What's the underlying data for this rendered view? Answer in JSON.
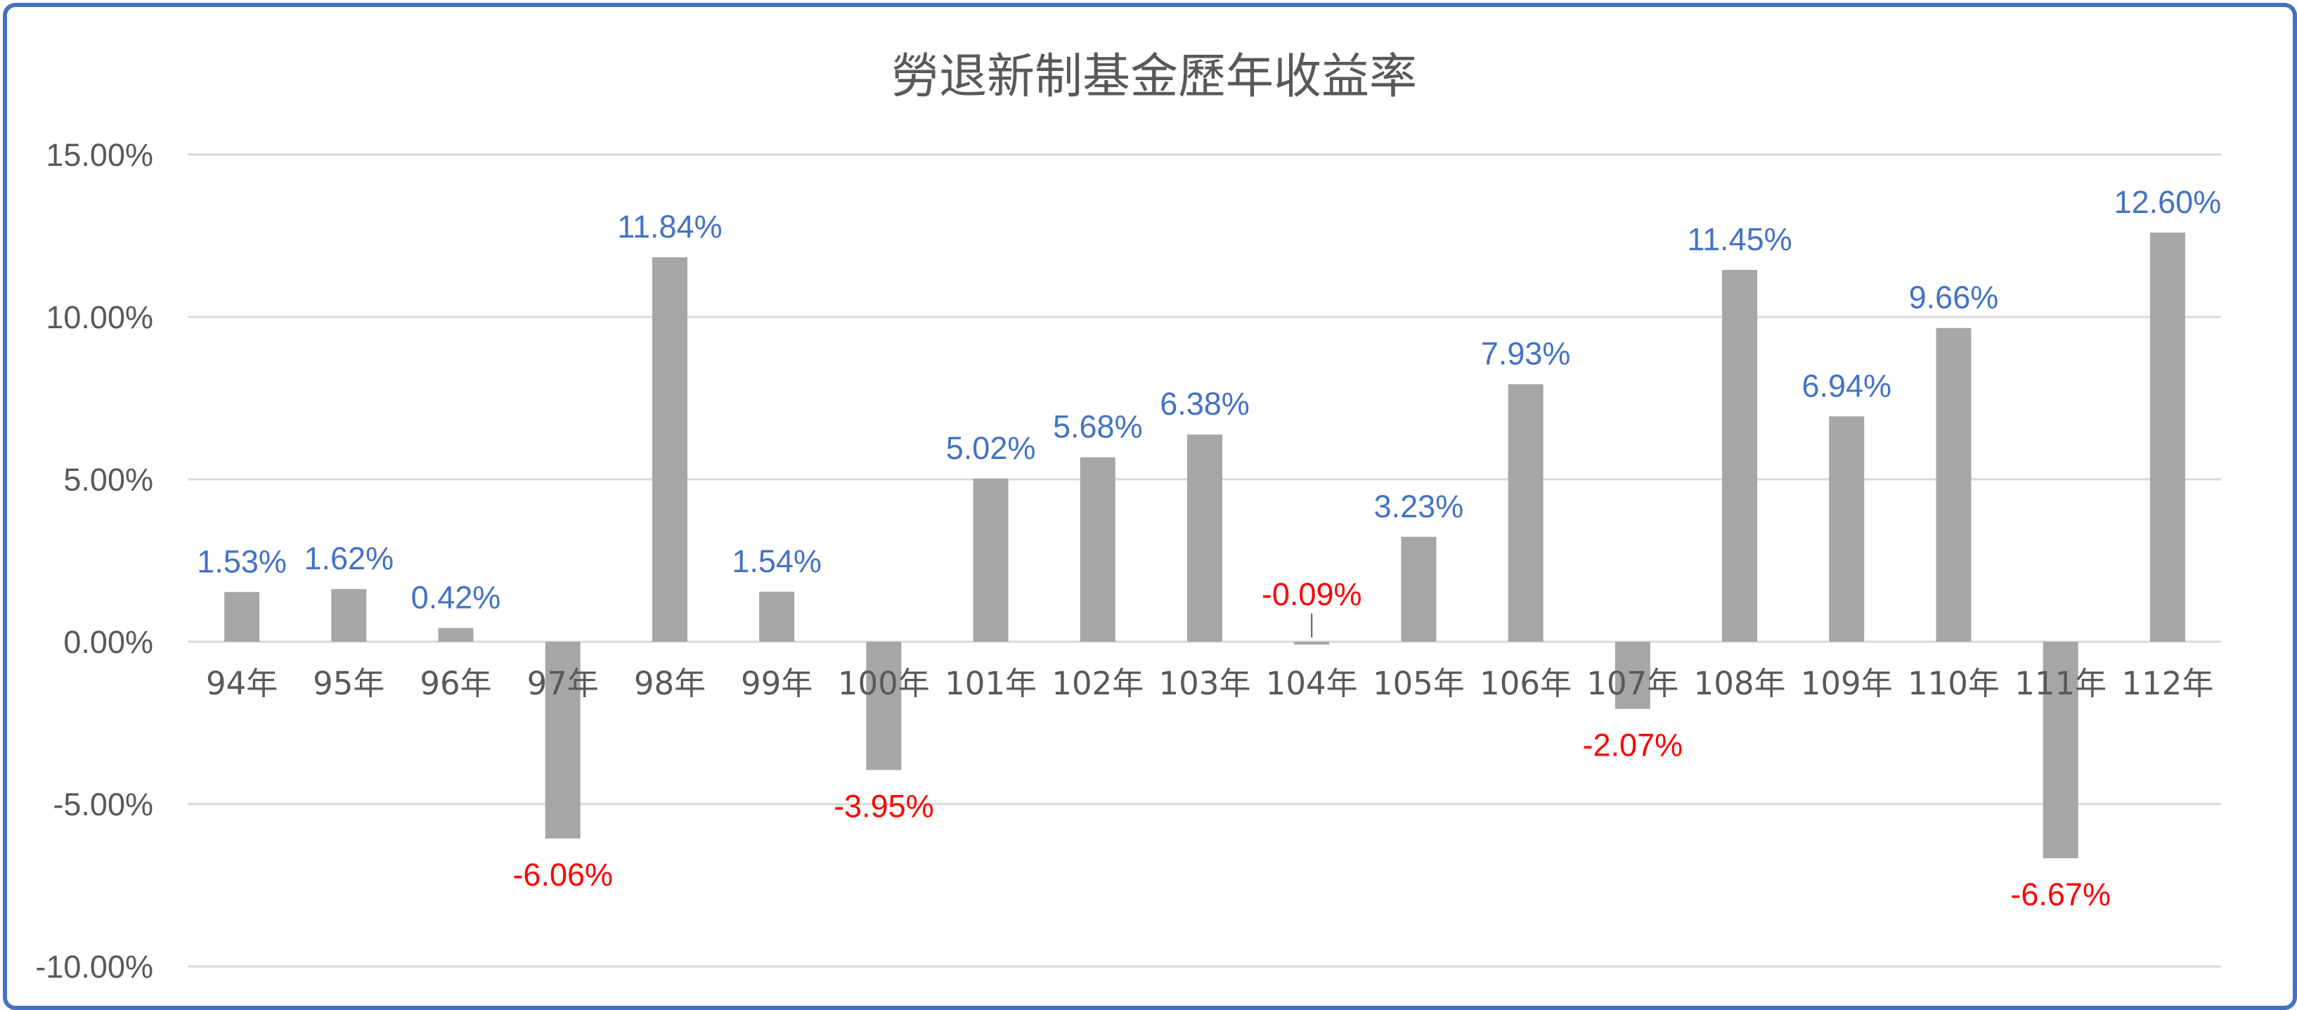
{
  "chart_data": {
    "type": "bar",
    "title": "勞退新制基金歷年收益率",
    "xlabel": "",
    "ylabel": "",
    "categories": [
      "94年",
      "95年",
      "96年",
      "97年",
      "98年",
      "99年",
      "100年",
      "101年",
      "102年",
      "103年",
      "104年",
      "105年",
      "106年",
      "107年",
      "108年",
      "109年",
      "110年",
      "111年",
      "112年"
    ],
    "values": [
      1.53,
      1.62,
      0.42,
      -6.06,
      11.84,
      1.54,
      -3.95,
      5.02,
      5.68,
      6.38,
      -0.09,
      3.23,
      7.93,
      -2.07,
      11.45,
      6.94,
      9.66,
      -6.67,
      12.6
    ],
    "data_labels": [
      "1.53%",
      "1.62%",
      "0.42%",
      "-6.06%",
      "11.84%",
      "1.54%",
      "-3.95%",
      "5.02%",
      "5.68%",
      "6.38%",
      "-0.09%",
      "3.23%",
      "7.93%",
      "-2.07%",
      "11.45%",
      "6.94%",
      "9.66%",
      "-6.67%",
      "12.60%"
    ],
    "y_ticks": [
      15,
      10,
      5,
      0,
      -5,
      -10
    ],
    "y_tick_labels": [
      "15.00%",
      "10.00%",
      "5.00%",
      "0.00%",
      "-5.00%",
      "-10.00%"
    ],
    "ylim": [
      -10,
      15
    ],
    "grid": true,
    "legend": "none",
    "colors": {
      "bar": "#a6a6a6",
      "positive_label": "#4472c4",
      "negative_label": "#ff0000",
      "gridline": "#d9d9d9",
      "frame_border": "#4472c4",
      "text": "#595959"
    }
  }
}
